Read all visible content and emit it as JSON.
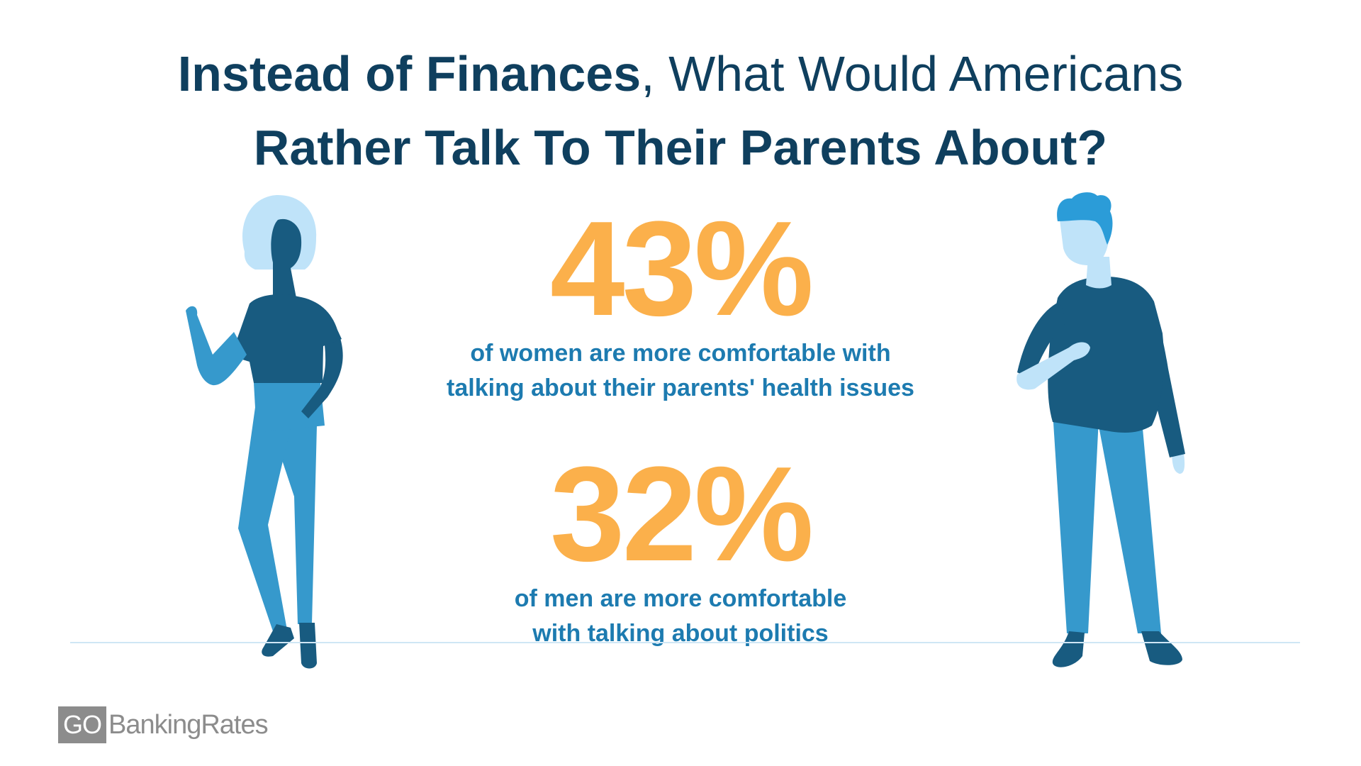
{
  "title": {
    "line1_bold": "Instead of Finances",
    "line1_rest": ", What Would Americans",
    "line2": "Rather Talk To Their Parents About?"
  },
  "stats": [
    {
      "value": "43%",
      "caption_line1": "of women are more comfortable with",
      "caption_line2": "talking about their parents' health issues"
    },
    {
      "value": "32%",
      "caption_line1": "of men are more comfortable",
      "caption_line2": "with talking about politics"
    }
  ],
  "logo": {
    "go": "GO",
    "text": "BankingRates"
  },
  "colors": {
    "title": "#0f3f5e",
    "stat_value": "#fbb04b",
    "stat_caption": "#1d7bb0",
    "figure_dark": "#185b80",
    "figure_mid": "#3699cc",
    "figure_light": "#bfe3f9",
    "figure_hair": "#2b9cd8",
    "ground_line": "#cfe6f5",
    "logo": "#8c8c8c"
  },
  "illustrations": [
    "woman-figure",
    "man-figure"
  ]
}
